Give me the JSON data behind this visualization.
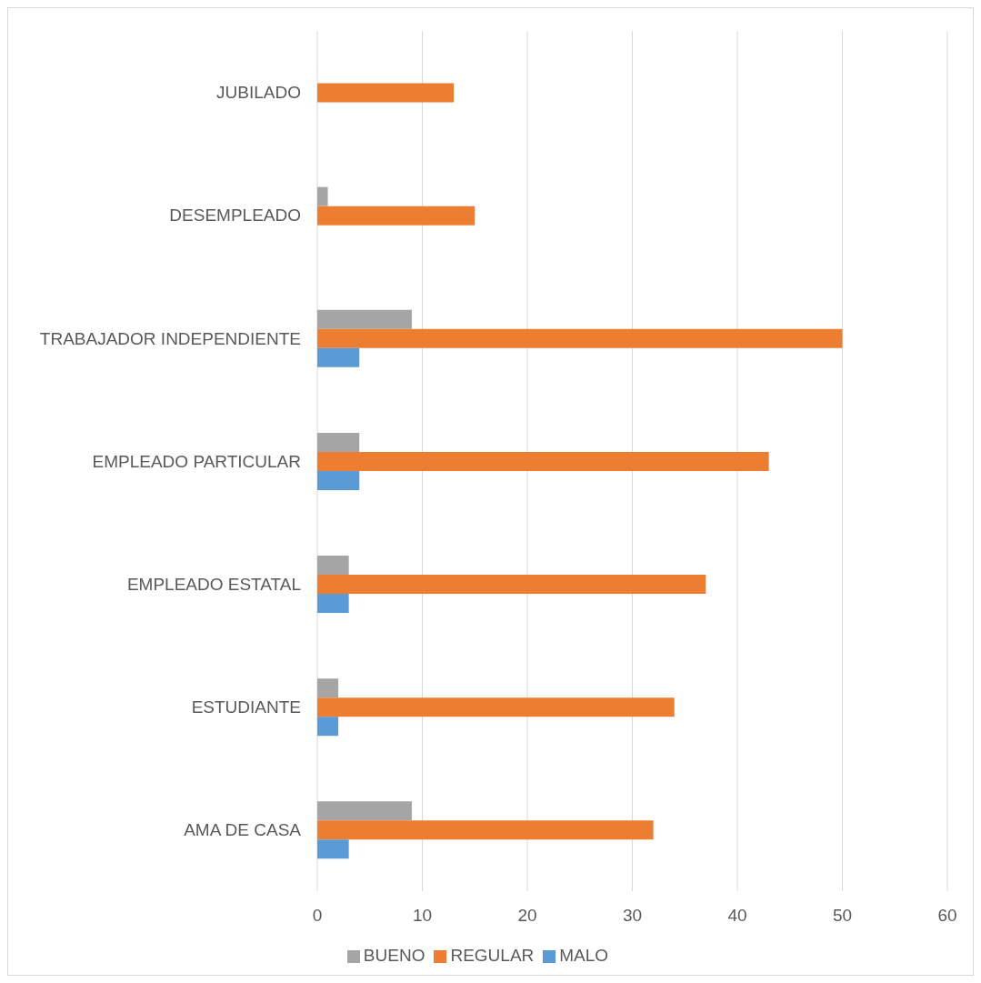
{
  "chart_data": {
    "type": "bar",
    "orientation": "horizontal",
    "categories": [
      "JUBILADO",
      "DESEMPLEADO",
      "TRABAJADOR INDEPENDIENTE",
      "EMPLEADO PARTICULAR",
      "EMPLEADO ESTATAL",
      "ESTUDIANTE",
      "AMA DE CASA"
    ],
    "series": [
      {
        "name": "BUENO",
        "color": "#a5a5a5",
        "values": [
          0,
          1,
          9,
          4,
          3,
          2,
          9
        ]
      },
      {
        "name": "REGULAR",
        "color": "#ed7d31",
        "values": [
          13,
          15,
          50,
          43,
          37,
          34,
          32
        ]
      },
      {
        "name": "MALO",
        "color": "#5b9bd5",
        "values": [
          0,
          0,
          4,
          4,
          3,
          2,
          3
        ]
      }
    ],
    "xlim": [
      0,
      60
    ],
    "xticks": [
      0,
      10,
      20,
      30,
      40,
      50,
      60
    ],
    "grid": "x",
    "legend": "bottom"
  }
}
